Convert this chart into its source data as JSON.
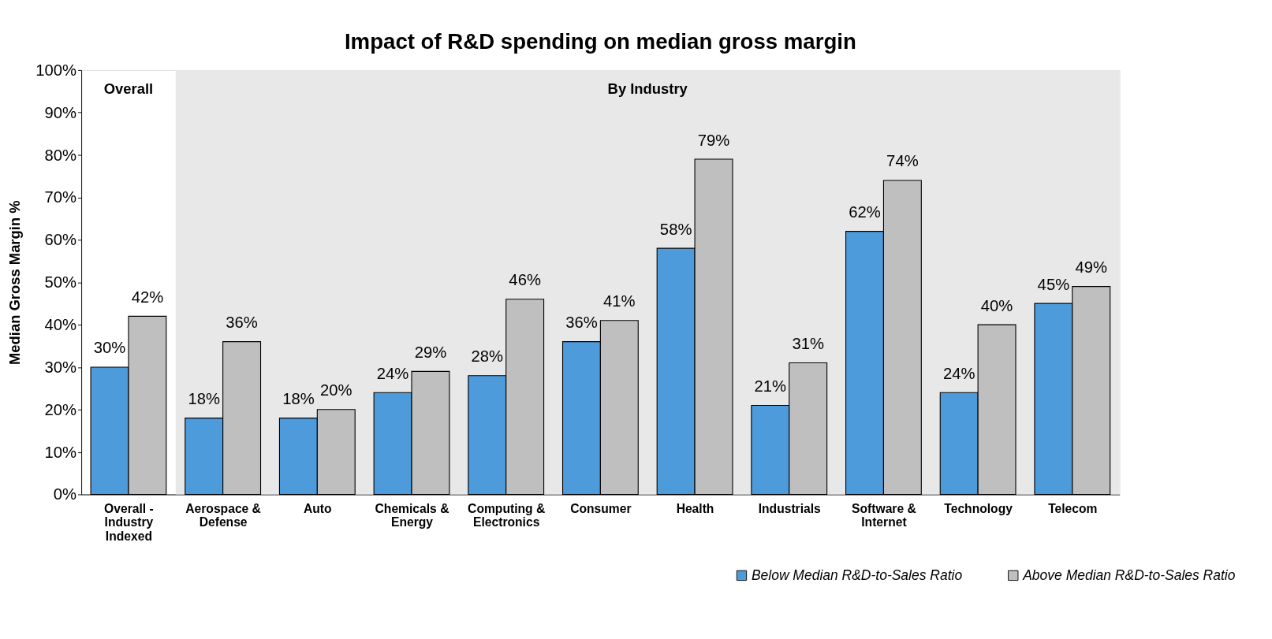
{
  "chart_data": {
    "type": "bar",
    "title": "Impact of R&D spending on median gross margin",
    "ylabel": "Median Gross Margin %",
    "categories": [
      "Overall - Industry Indexed",
      "Aerospace & Defense",
      "Auto",
      "Chemicals & Energy",
      "Computing & Electronics",
      "Consumer",
      "Health",
      "Industrials",
      "Software & Internet",
      "Technology",
      "Telecom"
    ],
    "series": [
      {
        "name": "Below Median R&D-to-Sales Ratio",
        "color": "#4e9bdc",
        "values": [
          30,
          18,
          18,
          24,
          28,
          36,
          58,
          21,
          62,
          24,
          45
        ],
        "value_labels": [
          "30%",
          "18%",
          "18%",
          "24%",
          "28%",
          "36%",
          "58%",
          "21%",
          "62%",
          "24%",
          "45%"
        ]
      },
      {
        "name": "Above Median R&D-to-Sales Ratio",
        "color": "#bfbfbf",
        "values": [
          42,
          36,
          20,
          29,
          46,
          41,
          79,
          31,
          74,
          40,
          49
        ],
        "value_labels": [
          "42%",
          "36%",
          "20%",
          "29%",
          "46%",
          "41%",
          "79%",
          "31%",
          "74%",
          "40%",
          "49%"
        ]
      }
    ],
    "ylim": [
      0,
      100
    ],
    "yticks": [
      {
        "value": 0,
        "label": "0%"
      },
      {
        "value": 10,
        "label": "10%"
      },
      {
        "value": 20,
        "label": "20%"
      },
      {
        "value": 30,
        "label": "30%"
      },
      {
        "value": 40,
        "label": "40%"
      },
      {
        "value": 50,
        "label": "50%"
      },
      {
        "value": 60,
        "label": "60%"
      },
      {
        "value": 70,
        "label": "70%"
      },
      {
        "value": 80,
        "label": "80%"
      },
      {
        "value": 90,
        "label": "90%"
      },
      {
        "value": 100,
        "label": "100%"
      }
    ],
    "bands": [
      {
        "axis": "x",
        "from": "Aerospace & Defense",
        "to": "Telecom",
        "label": "By Industry",
        "color": "#e8e8e8"
      }
    ],
    "annotations": [
      "Overall"
    ],
    "grid": false,
    "legend": "bottom right"
  }
}
